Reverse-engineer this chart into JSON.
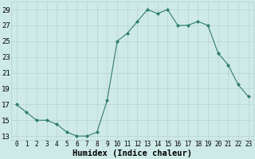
{
  "x": [
    0,
    1,
    2,
    3,
    4,
    5,
    6,
    7,
    8,
    9,
    10,
    11,
    12,
    13,
    14,
    15,
    16,
    17,
    18,
    19,
    20,
    21,
    22,
    23
  ],
  "y": [
    17,
    16,
    15,
    15,
    14.5,
    13.5,
    13,
    13,
    13.5,
    17.5,
    25,
    26,
    27.5,
    29,
    28.5,
    29,
    27,
    27,
    27.5,
    27,
    23.5,
    22,
    19.5,
    18
  ],
  "line_color": "#2e7d6e",
  "marker": "D",
  "marker_size": 2.0,
  "bg_color": "#ceeae7",
  "grid_major_color": "#b8d4d0",
  "grid_minor_color": "#d8ecea",
  "xlabel": "Humidex (Indice chaleur)",
  "yticks": [
    13,
    15,
    17,
    19,
    21,
    23,
    25,
    27,
    29
  ],
  "xticks": [
    0,
    1,
    2,
    3,
    4,
    5,
    6,
    7,
    8,
    9,
    10,
    11,
    12,
    13,
    14,
    15,
    16,
    17,
    18,
    19,
    20,
    21,
    22,
    23
  ],
  "ylim": [
    12.5,
    30.0
  ],
  "xlim": [
    -0.5,
    23.5
  ],
  "xlabel_fontsize": 7.5,
  "ytick_fontsize": 6.5,
  "xtick_fontsize": 5.5
}
